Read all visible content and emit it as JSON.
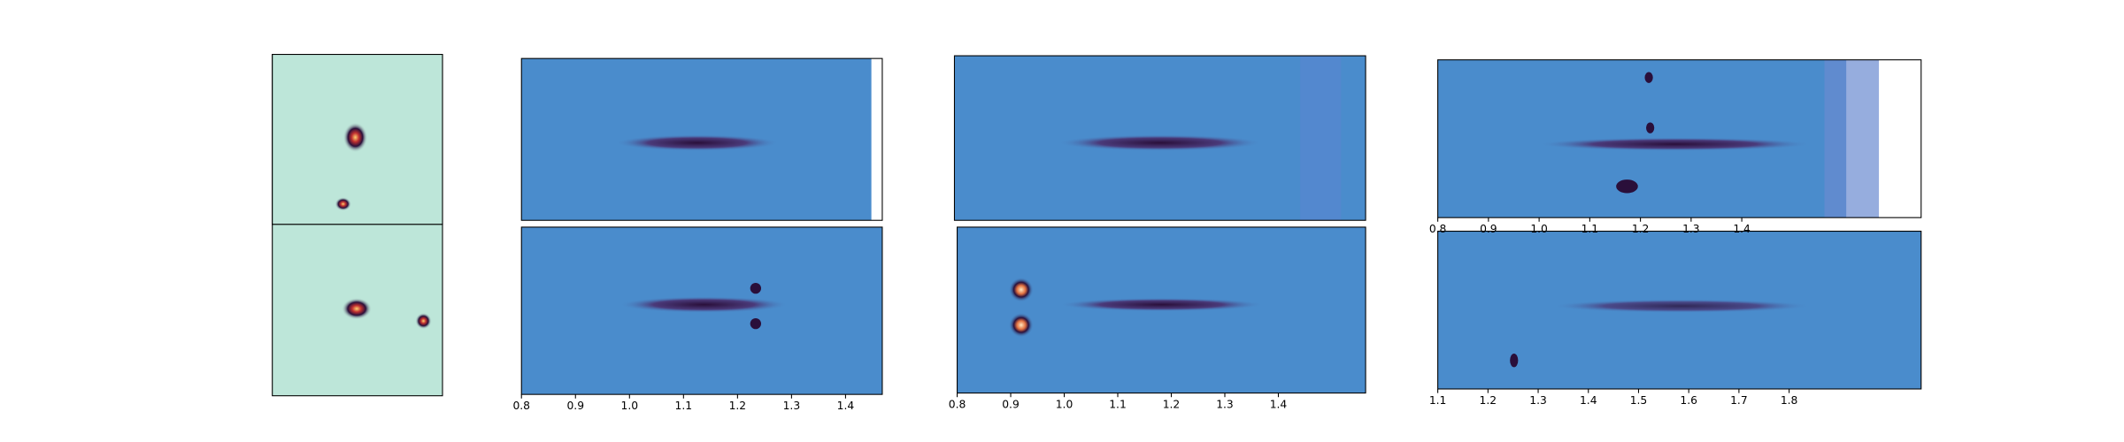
{
  "chart_data": [
    {
      "type": "image",
      "xlim": [
        0.8,
        1.468
      ],
      "xticks": [
        0.8,
        0.9,
        {
          "value": 1.0,
          "label": "1.0"
        },
        1.1,
        1.2,
        1.3,
        1.4
      ]
    },
    {
      "type": "image",
      "xlim": [
        0.8,
        1.563
      ],
      "xticks": [
        0.8,
        0.9,
        {
          "value": 1.0,
          "label": "1.0"
        },
        1.1,
        1.2,
        1.3,
        1.4
      ]
    },
    {
      "type": "image",
      "xlim": [
        0.8,
        1.754
      ],
      "xticks": [
        0.8,
        0.9,
        {
          "value": 1.0,
          "label": "1.0"
        },
        1.1,
        1.2,
        1.3,
        1.4
      ]
    },
    {
      "type": "image",
      "xlim": [
        1.1,
        2.063
      ],
      "xticks": [
        1.1,
        1.2,
        1.3,
        1.4,
        1.5,
        1.6,
        1.7,
        1.8
      ]
    }
  ]
}
